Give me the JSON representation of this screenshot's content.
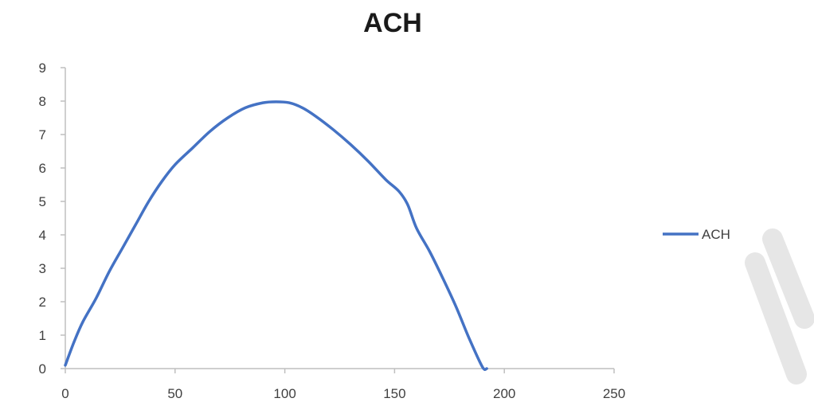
{
  "chart_data": {
    "type": "line",
    "title": "ACH",
    "xlabel": "",
    "ylabel": "",
    "xlim": [
      0,
      250
    ],
    "ylim": [
      0,
      9
    ],
    "x_ticks": [
      0,
      50,
      100,
      150,
      200,
      250
    ],
    "y_ticks": [
      0,
      1,
      2,
      3,
      4,
      5,
      6,
      7,
      8,
      9
    ],
    "grid": false,
    "legend_position": "right",
    "series": [
      {
        "name": "ACH",
        "color": "#4472c4",
        "x": [
          0,
          4,
          8,
          14,
          20,
          26,
          32,
          38,
          44,
          50,
          58,
          66,
          74,
          82,
          90,
          96,
          102,
          108,
          114,
          122,
          130,
          138,
          146,
          152,
          156,
          160,
          166,
          172,
          178,
          184,
          190,
          192
        ],
        "y": [
          0.1,
          0.8,
          1.4,
          2.1,
          2.9,
          3.6,
          4.3,
          5.0,
          5.6,
          6.1,
          6.6,
          7.1,
          7.5,
          7.8,
          7.95,
          7.98,
          7.95,
          7.8,
          7.55,
          7.15,
          6.7,
          6.2,
          5.65,
          5.3,
          4.9,
          4.2,
          3.5,
          2.7,
          1.85,
          0.9,
          0.05,
          0
        ]
      }
    ]
  }
}
